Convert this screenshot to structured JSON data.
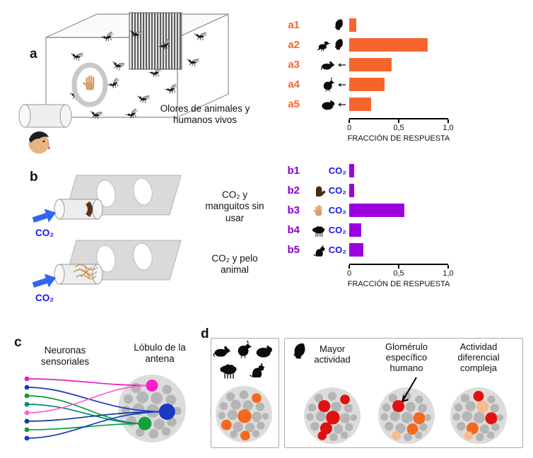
{
  "figure": {
    "panel_a_label": "a",
    "panel_b_label": "b",
    "panel_c_label": "c",
    "panel_d_label": "d",
    "panel_a_caption": "Olores de animales y humanos vivos",
    "panel_b_caption_1": "CO₂ y manguitos sin usar",
    "panel_b_caption_2": "CO₂ y pelo animal",
    "co2_label": "CO₂",
    "panel_c_left_title": "Neuronas sensoriales",
    "panel_c_right_title": "Lóbulo de la antena",
    "panel_d_captions": [
      "Mayor actividad",
      "Glomérulo específico humano",
      "Actividad diferencial compleja"
    ]
  },
  "colors": {
    "orange": "#f7652e",
    "purple_bar": "#9c00e0",
    "purple_label": "#8a00cc",
    "blue_co2": "#1616f0",
    "arrow_blue": "#3366ee",
    "cluster_bg": "#dcdcdc",
    "glom_gray": "#b5b5b5",
    "red": "#e21111",
    "orange_glom": "#f4691e",
    "peach": "#f8bb8e",
    "magenta": "#ff1ecb",
    "blue_glom": "#1c39c6",
    "green_glom": "#13a03c"
  },
  "chart_data": [
    {
      "type": "bar",
      "orientation": "horizontal",
      "categories": [
        "a1",
        "a2",
        "a3",
        "a4",
        "a5"
      ],
      "values": [
        0.07,
        0.79,
        0.43,
        0.36,
        0.22
      ],
      "row_icons": [
        [
          "human-head"
        ],
        [
          "bird",
          "human-head"
        ],
        [
          "rat",
          "arrow-left"
        ],
        [
          "quail",
          "arrow-left"
        ],
        [
          "guinea-pig",
          "arrow-left"
        ]
      ],
      "xlabel": "FRACCIÓN DE RESPUESTA",
      "xlim": [
        0,
        1
      ],
      "xticks": [
        {
          "v": 0,
          "label": "0"
        },
        {
          "v": 0.5,
          "label": "0,5"
        },
        {
          "v": 1,
          "label": "1,0"
        }
      ],
      "bar_color": "orange",
      "category_color": "orange"
    },
    {
      "type": "bar",
      "orientation": "horizontal",
      "categories": [
        "b1",
        "b2",
        "b3",
        "b4",
        "b5"
      ],
      "values": [
        0.05,
        0.05,
        0.56,
        0.12,
        0.14
      ],
      "row_icons": [
        [],
        [
          "glove"
        ],
        [
          "hand"
        ],
        [
          "sheep"
        ],
        [
          "dog"
        ]
      ],
      "row_prefix": "CO₂",
      "prefix_color": "blue_co2",
      "xlabel": "FRACCIÓN DE RESPUESTA",
      "xlim": [
        0,
        1
      ],
      "xticks": [
        {
          "v": 0,
          "label": "0"
        },
        {
          "v": 0.5,
          "label": "0,5"
        },
        {
          "v": 1,
          "label": "1,0"
        }
      ],
      "bar_color": "purple_bar",
      "category_color": "purple_label"
    }
  ],
  "clusters": {
    "base": [
      [
        -20,
        -26,
        6.5
      ],
      [
        0,
        -29,
        6.5
      ],
      [
        19,
        -24,
        6
      ],
      [
        -30,
        -12,
        6
      ],
      [
        -12,
        -14,
        7.5
      ],
      [
        6,
        -13,
        7.5
      ],
      [
        24,
        -11,
        6.5
      ],
      [
        -33,
        2,
        5.5
      ],
      [
        -17,
        1,
        7.5
      ],
      [
        1,
        3,
        8.5
      ],
      [
        19,
        4,
        7.5
      ],
      [
        32,
        3,
        5
      ],
      [
        -26,
        16,
        6.5
      ],
      [
        -9,
        19,
        7.5
      ],
      [
        9,
        20,
        7
      ],
      [
        25,
        17,
        6
      ],
      [
        -15,
        30,
        5.5
      ],
      [
        2,
        32,
        6
      ],
      [
        18,
        29,
        5.5
      ]
    ],
    "antennal_lobe": {
      "bg_r": 48,
      "scale": 1.12,
      "overrides": {
        "1": {
          "color": "magenta",
          "r": 8.5
        },
        "10": {
          "color": "blue_glom",
          "r": 11.5
        },
        "13": {
          "color": "green_glom",
          "r": 9.5
        }
      }
    },
    "d_animals": {
      "bg_r": 40,
      "scale": 0.95,
      "overrides": {
        "2": {
          "color": "orange_glom"
        },
        "9": {
          "color": "orange_glom"
        },
        "12": {
          "color": "orange_glom"
        },
        "17": {
          "color": "orange_glom"
        }
      }
    },
    "d_mayor": {
      "bg_r": 40,
      "scale": 0.95,
      "overrides": {
        "2": {
          "color": "red"
        },
        "4": {
          "color": "red"
        },
        "9": {
          "color": "red"
        },
        "13": {
          "color": "red"
        },
        "16": {
          "color": "red"
        }
      }
    },
    "d_humano": {
      "bg_r": 40,
      "scale": 0.95,
      "overrides": {
        "4": {
          "color": "red"
        },
        "10": {
          "color": "orange_glom"
        },
        "14": {
          "color": "orange_glom"
        },
        "16": {
          "color": "peach"
        }
      }
    },
    "d_compleja": {
      "bg_r": 40,
      "scale": 0.95,
      "overrides": {
        "1": {
          "color": "red"
        },
        "5": {
          "color": "peach"
        },
        "10": {
          "color": "red"
        },
        "13": {
          "color": "orange_glom"
        },
        "16": {
          "color": "peach"
        }
      }
    }
  },
  "neurons": {
    "wires": [
      {
        "color": "#e020c8",
        "target": 0
      },
      {
        "color": "#1638c8",
        "target": 1
      },
      {
        "color": "#0f9a3c",
        "target": 2
      },
      {
        "color": "#00897b",
        "target": 2
      },
      {
        "color": "#ff5fd0",
        "target": 0
      },
      {
        "color": "#123a9e",
        "target": 1
      },
      {
        "color": "#0f9a3c",
        "target": 2
      },
      {
        "color": "#1638c8",
        "target": 1
      }
    ],
    "target_indices": [
      1,
      10,
      13
    ]
  }
}
